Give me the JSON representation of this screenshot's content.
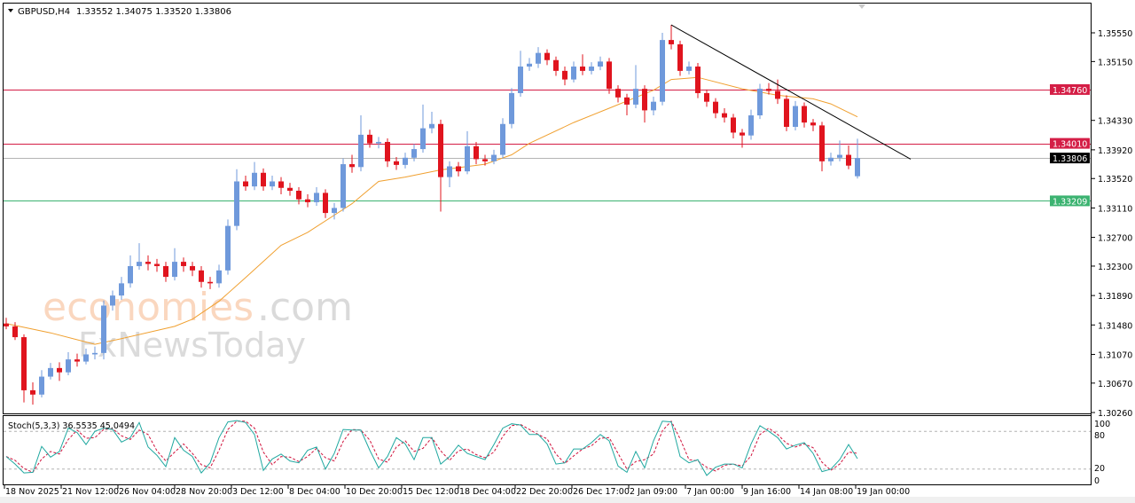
{
  "header": {
    "symbol": "GBPUSD,H4",
    "ohlc": "1.33552 1.34075 1.33520 1.33806",
    "dropdown_icon": "triangle-down-icon"
  },
  "watermark": {
    "line1_main": "economies",
    "line1_suffix": ".com",
    "line2": "FxNewsToday"
  },
  "colors": {
    "bull": "#6f99db",
    "bear": "#e0141e",
    "ma": "#f0a030",
    "resistance": "#d41e46",
    "support": "#3cb371",
    "current": "#000000",
    "stoch_k": "#20a8a0",
    "stoch_d": "#d0103a",
    "trendline": "#000000"
  },
  "chart_data": [
    {
      "type": "candlestick",
      "title": "GBPUSD,H4",
      "ylim": [
        1.3026,
        1.3555
      ],
      "yticks": [
        "1.35550",
        "1.35150",
        "1.34330",
        "1.33920",
        "1.33520",
        "1.33110",
        "1.32700",
        "1.32300",
        "1.31890",
        "1.31480",
        "1.31070",
        "1.30670",
        "1.30260"
      ],
      "xticks": [
        "18 Nov 2025",
        "21 Nov 12:00",
        "26 Nov 04:00",
        "28 Nov 20:00",
        "3 Dec 12:00",
        "8 Dec 04:00",
        "10 Dec 20:00",
        "15 Dec 12:00",
        "18 Dec 04:00",
        "22 Dec 20:00",
        "26 Dec 17:00",
        "2 Jan 09:00",
        "7 Jan 00:00",
        "9 Jan 16:00",
        "14 Jan 08:00",
        "19 Jan 00:00"
      ],
      "grid": false,
      "candles_ohlc": [
        [
          1.315,
          1.3158,
          1.3142,
          1.3146
        ],
        [
          1.3146,
          1.3152,
          1.3127,
          1.3131
        ],
        [
          1.3131,
          1.3135,
          1.304,
          1.3057
        ],
        [
          1.3057,
          1.3068,
          1.3037,
          1.3051
        ],
        [
          1.3051,
          1.3085,
          1.3047,
          1.3076
        ],
        [
          1.3076,
          1.3095,
          1.3072,
          1.3088
        ],
        [
          1.3088,
          1.3096,
          1.307,
          1.3082
        ],
        [
          1.3082,
          1.311,
          1.3078,
          1.31
        ],
        [
          1.31,
          1.3108,
          1.309,
          1.3097
        ],
        [
          1.3097,
          1.3115,
          1.3093,
          1.3107
        ],
        [
          1.3107,
          1.3118,
          1.31,
          1.3109
        ],
        [
          1.3109,
          1.3182,
          1.31,
          1.3175
        ],
        [
          1.3175,
          1.3196,
          1.3168,
          1.3189
        ],
        [
          1.3189,
          1.3215,
          1.3183,
          1.3206
        ],
        [
          1.3206,
          1.3245,
          1.32,
          1.323
        ],
        [
          1.323,
          1.3262,
          1.3225,
          1.3236
        ],
        [
          1.3236,
          1.3245,
          1.3224,
          1.3233
        ],
        [
          1.3233,
          1.324,
          1.3222,
          1.323
        ],
        [
          1.323,
          1.3236,
          1.3208,
          1.3215
        ],
        [
          1.3215,
          1.3255,
          1.321,
          1.3236
        ],
        [
          1.3236,
          1.3242,
          1.3222,
          1.323
        ],
        [
          1.323,
          1.3236,
          1.3216,
          1.3224
        ],
        [
          1.3224,
          1.323,
          1.32,
          1.3208
        ],
        [
          1.3208,
          1.3215,
          1.3198,
          1.3206
        ],
        [
          1.3206,
          1.3232,
          1.32,
          1.3224
        ],
        [
          1.3224,
          1.3295,
          1.3218,
          1.3286
        ],
        [
          1.3286,
          1.3365,
          1.328,
          1.3348
        ],
        [
          1.3348,
          1.3356,
          1.3335,
          1.3341
        ],
        [
          1.3341,
          1.3375,
          1.3336,
          1.336
        ],
        [
          1.336,
          1.3366,
          1.3335,
          1.3341
        ],
        [
          1.3341,
          1.3356,
          1.3336,
          1.3348
        ],
        [
          1.3348,
          1.3354,
          1.333,
          1.3339
        ],
        [
          1.3339,
          1.3346,
          1.3328,
          1.3335
        ],
        [
          1.3335,
          1.334,
          1.3316,
          1.3323
        ],
        [
          1.3323,
          1.333,
          1.3312,
          1.3319
        ],
        [
          1.3319,
          1.334,
          1.3314,
          1.3332
        ],
        [
          1.3332,
          1.3337,
          1.3297,
          1.3304
        ],
        [
          1.3304,
          1.3318,
          1.3295,
          1.3311
        ],
        [
          1.3311,
          1.338,
          1.3306,
          1.3372
        ],
        [
          1.3372,
          1.3385,
          1.336,
          1.3368
        ],
        [
          1.3368,
          1.344,
          1.3362,
          1.3413
        ],
        [
          1.3413,
          1.342,
          1.3395,
          1.3401
        ],
        [
          1.3401,
          1.341,
          1.3394,
          1.3403
        ],
        [
          1.3403,
          1.3408,
          1.3368,
          1.3376
        ],
        [
          1.3376,
          1.3382,
          1.3364,
          1.3371
        ],
        [
          1.3371,
          1.3388,
          1.3366,
          1.3381
        ],
        [
          1.3381,
          1.34,
          1.3376,
          1.3393
        ],
        [
          1.3393,
          1.3455,
          1.3388,
          1.3422
        ],
        [
          1.3422,
          1.3445,
          1.3415,
          1.3428
        ],
        [
          1.3428,
          1.3434,
          1.3306,
          1.3354
        ],
        [
          1.3354,
          1.3376,
          1.334,
          1.3369
        ],
        [
          1.3369,
          1.3375,
          1.3355,
          1.3362
        ],
        [
          1.3362,
          1.3418,
          1.3358,
          1.3397
        ],
        [
          1.3397,
          1.3403,
          1.3372,
          1.3379
        ],
        [
          1.3379,
          1.3385,
          1.337,
          1.3376
        ],
        [
          1.3376,
          1.3392,
          1.3372,
          1.3385
        ],
        [
          1.3385,
          1.3436,
          1.338,
          1.3428
        ],
        [
          1.3428,
          1.3478,
          1.3422,
          1.3471
        ],
        [
          1.3471,
          1.353,
          1.3466,
          1.3508
        ],
        [
          1.3508,
          1.352,
          1.3502,
          1.3512
        ],
        [
          1.3512,
          1.3535,
          1.3506,
          1.3527
        ],
        [
          1.3527,
          1.3532,
          1.351,
          1.3517
        ],
        [
          1.3517,
          1.3522,
          1.3495,
          1.3502
        ],
        [
          1.3502,
          1.3508,
          1.3482,
          1.349
        ],
        [
          1.349,
          1.3515,
          1.3486,
          1.3508
        ],
        [
          1.3508,
          1.3525,
          1.3496,
          1.3502
        ],
        [
          1.3502,
          1.3514,
          1.3497,
          1.3508
        ],
        [
          1.3508,
          1.3522,
          1.3503,
          1.3515
        ],
        [
          1.3515,
          1.352,
          1.347,
          1.3477
        ],
        [
          1.3477,
          1.3482,
          1.3458,
          1.3465
        ],
        [
          1.3465,
          1.347,
          1.344,
          1.3455
        ],
        [
          1.3455,
          1.351,
          1.345,
          1.3477
        ],
        [
          1.3477,
          1.3482,
          1.343,
          1.3447
        ],
        [
          1.3447,
          1.3466,
          1.344,
          1.3459
        ],
        [
          1.3459,
          1.3555,
          1.3454,
          1.3545
        ],
        [
          1.3545,
          1.3566,
          1.3532,
          1.3539
        ],
        [
          1.3539,
          1.3544,
          1.3495,
          1.3502
        ],
        [
          1.3502,
          1.3515,
          1.3497,
          1.3508
        ],
        [
          1.3508,
          1.3513,
          1.3464,
          1.3471
        ],
        [
          1.3471,
          1.3476,
          1.3452,
          1.3459
        ],
        [
          1.3459,
          1.3464,
          1.3436,
          1.3443
        ],
        [
          1.3443,
          1.345,
          1.343,
          1.3437
        ],
        [
          1.3437,
          1.3442,
          1.3408,
          1.3416
        ],
        [
          1.3416,
          1.3421,
          1.3395,
          1.3412
        ],
        [
          1.3412,
          1.3448,
          1.3406,
          1.344
        ],
        [
          1.344,
          1.3484,
          1.3435,
          1.3477
        ],
        [
          1.3477,
          1.3485,
          1.3469,
          1.3474
        ],
        [
          1.3474,
          1.349,
          1.3456,
          1.3463
        ],
        [
          1.3463,
          1.3468,
          1.3418,
          1.3424
        ],
        [
          1.3424,
          1.346,
          1.3419,
          1.3453
        ],
        [
          1.3453,
          1.3458,
          1.3423,
          1.343
        ],
        [
          1.343,
          1.3435,
          1.3418,
          1.3426
        ],
        [
          1.3426,
          1.3431,
          1.3362,
          1.3376
        ],
        [
          1.3376,
          1.3388,
          1.337,
          1.3381
        ],
        [
          1.3381,
          1.3405,
          1.3376,
          1.3385
        ],
        [
          1.3385,
          1.3398,
          1.3365,
          1.337
        ],
        [
          1.33552,
          1.34075,
          1.3352,
          1.33806
        ]
      ],
      "moving_average": [
        [
          0,
          1.315
        ],
        [
          5,
          1.3137
        ],
        [
          10,
          1.3121
        ],
        [
          13,
          1.3129
        ],
        [
          19,
          1.3146
        ],
        [
          21,
          1.3156
        ],
        [
          24,
          1.3181
        ],
        [
          27,
          1.3214
        ],
        [
          31,
          1.3259
        ],
        [
          34,
          1.3277
        ],
        [
          39,
          1.3317
        ],
        [
          42,
          1.3348
        ],
        [
          45,
          1.3354
        ],
        [
          49,
          1.3364
        ],
        [
          54,
          1.3372
        ],
        [
          57,
          1.3385
        ],
        [
          59,
          1.3401
        ],
        [
          64,
          1.343
        ],
        [
          68,
          1.345
        ],
        [
          71,
          1.3465
        ],
        [
          73,
          1.3475
        ],
        [
          75,
          1.349
        ],
        [
          78,
          1.3493
        ],
        [
          83,
          1.3477
        ],
        [
          87,
          1.3468
        ],
        [
          91,
          1.3463
        ],
        [
          93,
          1.3456
        ],
        [
          96,
          1.3438
        ]
      ],
      "trendline": {
        "from": [
          75,
          1.3566
        ],
        "to": [
          102,
          1.3379
        ]
      },
      "horizontal_levels": [
        {
          "value": "1.34760",
          "kind": "resistance"
        },
        {
          "value": "1.34010",
          "kind": "resistance"
        },
        {
          "value": "1.33209",
          "kind": "support"
        },
        {
          "value": "1.33806",
          "kind": "current"
        }
      ]
    },
    {
      "type": "line",
      "title": "Stoch(5,3,3) 36.5535 45.0494",
      "ylim": [
        0,
        100
      ],
      "yticks": [
        "100",
        "80",
        "20",
        "0"
      ],
      "levels": [
        80,
        20
      ],
      "series": [
        {
          "name": "%K",
          "values": [
            40,
            28,
            14,
            15,
            56,
            39,
            48,
            85,
            78,
            59,
            80,
            85,
            83,
            63,
            70,
            94,
            55,
            42,
            24,
            70,
            50,
            40,
            14,
            30,
            70,
            95,
            97,
            94,
            75,
            18,
            36,
            44,
            33,
            30,
            50,
            55,
            20,
            45,
            83,
            82,
            82,
            50,
            22,
            40,
            70,
            60,
            35,
            70,
            70,
            28,
            40,
            58,
            45,
            40,
            35,
            59,
            85,
            92,
            90,
            75,
            75,
            60,
            28,
            30,
            52,
            52,
            62,
            75,
            65,
            25,
            15,
            48,
            22,
            65,
            96,
            95,
            40,
            30,
            35,
            10,
            23,
            28,
            28,
            22,
            60,
            89,
            80,
            70,
            52,
            58,
            62,
            45,
            16,
            20,
            35,
            59,
            36.55
          ]
        },
        {
          "name": "%D",
          "values": [
            40,
            34,
            21,
            15,
            36,
            48,
            44,
            67,
            82,
            69,
            70,
            83,
            84,
            73,
            67,
            82,
            75,
            49,
            33,
            47,
            60,
            45,
            27,
            22,
            50,
            83,
            96,
            96,
            85,
            47,
            27,
            40,
            39,
            32,
            40,
            53,
            38,
            33,
            64,
            83,
            82,
            66,
            36,
            31,
            55,
            65,
            48,
            53,
            70,
            49,
            34,
            49,
            52,
            43,
            38,
            47,
            72,
            89,
            91,
            83,
            75,
            68,
            44,
            29,
            41,
            52,
            57,
            69,
            70,
            45,
            20,
            32,
            35,
            44,
            81,
            96,
            68,
            35,
            33,
            23,
            17,
            26,
            28,
            25,
            41,
            75,
            85,
            75,
            61,
            55,
            60,
            54,
            31,
            18,
            28,
            47,
            45.05
          ]
        }
      ]
    }
  ]
}
